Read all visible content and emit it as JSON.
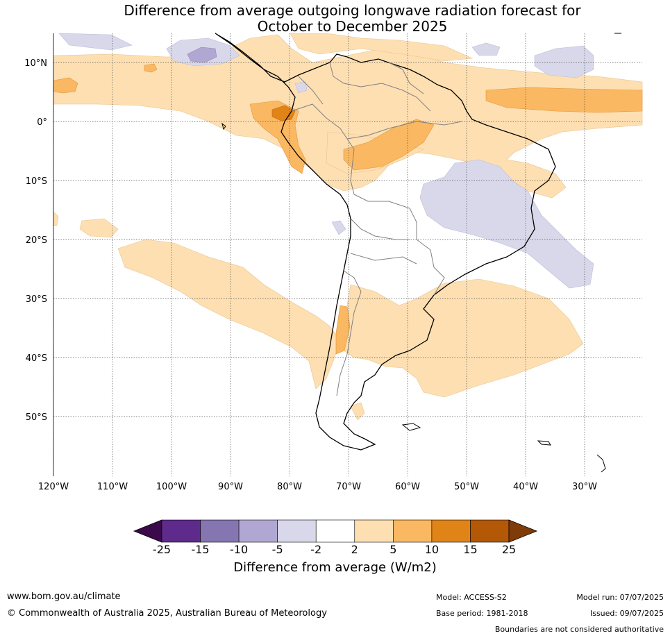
{
  "title_line1": "Difference from average outgoing longwave radiation forecast for",
  "title_line2": "October to December 2025",
  "lat_labels": [
    "10°N",
    "0°",
    "10°S",
    "20°S",
    "30°S",
    "40°S",
    "50°S"
  ],
  "lon_labels": [
    "120°W",
    "110°W",
    "100°W",
    "90°W",
    "80°W",
    "70°W",
    "60°W",
    "50°W",
    "40°W",
    "30°W"
  ],
  "colorbar": {
    "ticks": [
      "-25",
      "-15",
      "-10",
      "-5",
      "-2",
      "2",
      "5",
      "10",
      "15",
      "25"
    ],
    "colors": [
      "#3a0a4a",
      "#5e2a8c",
      "#8575b0",
      "#b0a8d2",
      "#d8d8ea",
      "#ffffff",
      "#fddfb2",
      "#fbb862",
      "#e18418",
      "#b35806",
      "#7f3b08"
    ],
    "label": "Difference from average (W/m2)"
  },
  "footer": {
    "website": "www.bom.gov.au/climate",
    "copyright": "© Commonwealth of Australia 2025, Australian Bureau of Meteorology",
    "model": "Model: ACCESS-S2",
    "base_period": "Base period: 1981-2018",
    "model_run": "Model run: 07/07/2025",
    "issued": "Issued: 09/07/2025",
    "disclaimer": "Boundaries are not considered authoritative"
  }
}
